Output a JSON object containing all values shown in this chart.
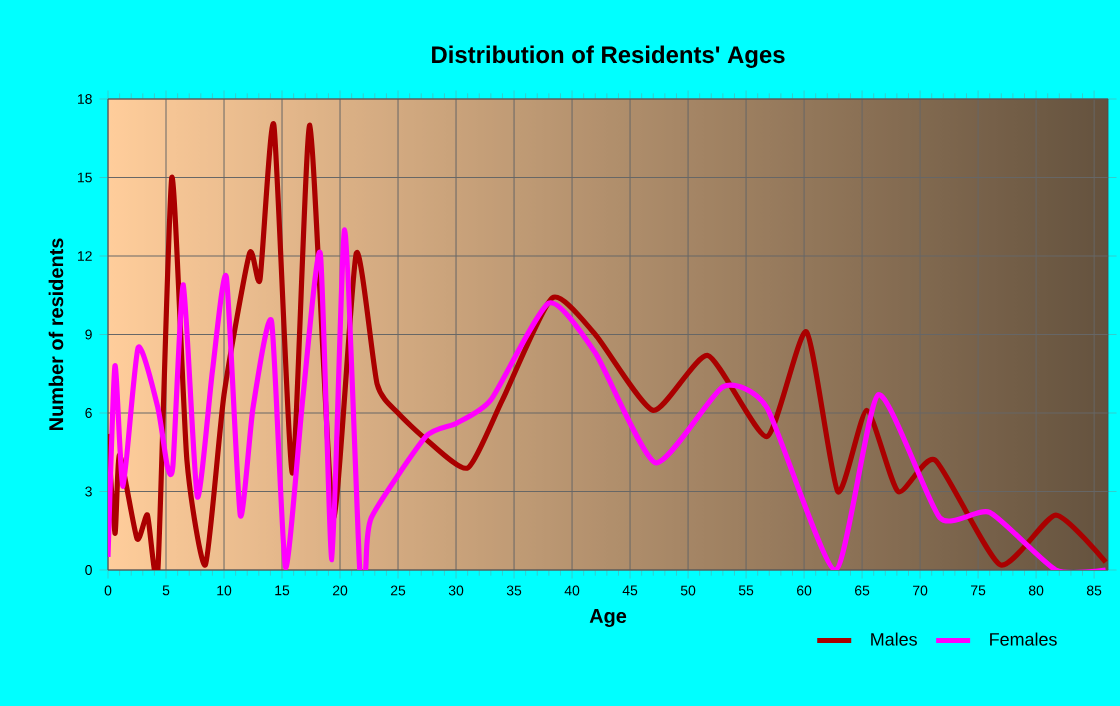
{
  "chart_data": {
    "type": "line",
    "title": "Distribution of Residents' Ages",
    "xlabel": "Age",
    "ylabel": "Number of residents",
    "xlim": [
      0,
      86.2
    ],
    "ylim": [
      0,
      18
    ],
    "xticks": [
      0,
      5,
      10,
      15,
      20,
      25,
      30,
      35,
      40,
      45,
      50,
      55,
      60,
      65,
      70,
      75,
      80,
      85
    ],
    "yticks": [
      0,
      3,
      6,
      9,
      12,
      15,
      18
    ],
    "grid": true,
    "legend": "bottom",
    "line_style": "solid",
    "marker": "none",
    "series": [
      {
        "name": "Males",
        "color": "#aa0000",
        "x": [
          0,
          0.6,
          1,
          2.5,
          3.4,
          4.3,
          5.5,
          6.8,
          8.4,
          10,
          12.2,
          13.1,
          14.3,
          15.9,
          17.4,
          19.4,
          21.4,
          23.2,
          25,
          27.4,
          31,
          34,
          38.3,
          42,
          47,
          51.7,
          56.8,
          60.2,
          62.9,
          65.4,
          68.1,
          71.3,
          76.9,
          81.7,
          86
        ],
        "values": [
          5.2,
          1.4,
          4.4,
          1.2,
          2.1,
          0,
          15,
          4.2,
          0.2,
          6.7,
          12.1,
          11.1,
          17,
          3.7,
          17,
          2,
          12.1,
          7.1,
          6,
          5,
          3.9,
          6.5,
          10.4,
          9,
          6.1,
          8.2,
          5.1,
          9.1,
          3,
          6.1,
          3,
          4.2,
          0.2,
          2.1,
          0.3
        ]
      },
      {
        "name": "Females",
        "color": "#ff00ff",
        "x": [
          0,
          0.6,
          1.3,
          2.6,
          4.3,
          5.1,
          5.6,
          6.5,
          7.7,
          9,
          10.2,
          11.4,
          12.5,
          14.1,
          15.3,
          16.8,
          18.3,
          19.3,
          20.4,
          21.7,
          22.2,
          22.7,
          27.4,
          30,
          33,
          38,
          42,
          47.2,
          53,
          56.8,
          62.7,
          66.4,
          71.7,
          76,
          81.7,
          86
        ],
        "values": [
          0.5,
          7.8,
          3.2,
          8.5,
          6.2,
          4,
          4,
          10.9,
          2.8,
          7.6,
          11.2,
          2.1,
          6.2,
          9.5,
          0.1,
          6.6,
          12.1,
          0.4,
          13,
          0,
          0,
          2,
          5.1,
          5.6,
          6.5,
          10.2,
          8.3,
          4.1,
          7,
          6.2,
          0,
          6.7,
          2,
          2.2,
          0,
          0
        ]
      }
    ]
  }
}
